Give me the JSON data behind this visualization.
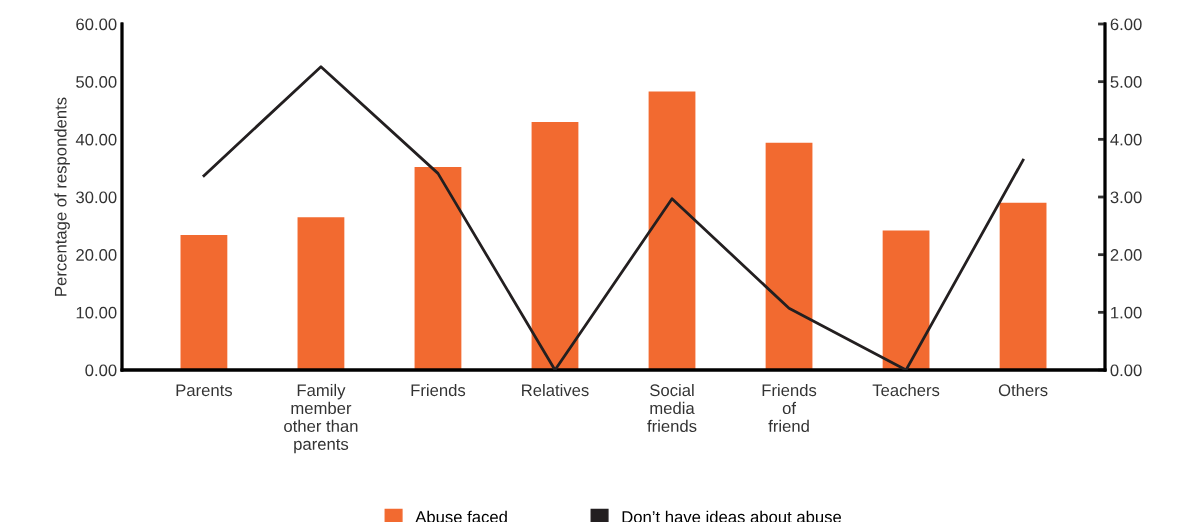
{
  "chart_data": {
    "type": "bar",
    "ylabel": "Percentage of respondents",
    "categories": [
      "Parents",
      "Family\nmember\nother than\nparents",
      "Friends",
      "Relatives",
      "Social\nmedia\nfriends",
      "Friends\nof\nfriend",
      "Teachers",
      "Others"
    ],
    "series": [
      {
        "name": "Abuse faced",
        "color": "#f26a30",
        "values": [
          23.4,
          26.5,
          35.2,
          43.0,
          48.3,
          39.4,
          24.2,
          29.0
        ]
      },
      {
        "name": "Don’t have ideas about abuse",
        "type": "line",
        "axis": "y2",
        "color": "#231f20",
        "values": [
          3.37,
          5.26,
          3.41,
          0,
          2.97,
          1.07,
          0,
          3.64
        ]
      }
    ],
    "ylim": [
      0,
      60
    ],
    "yticks": [
      {
        "value": 0,
        "label": "0.00"
      },
      {
        "value": 10,
        "label": "10.00"
      },
      {
        "value": 20,
        "label": "20.00"
      },
      {
        "value": 30,
        "label": "30.00"
      },
      {
        "value": 40,
        "label": "40.00"
      },
      {
        "value": 50,
        "label": "50.00"
      },
      {
        "value": 60,
        "label": "60.00"
      }
    ],
    "y2lim": [
      0,
      6
    ],
    "y2ticks": [
      {
        "value": 0,
        "label": "0.00"
      },
      {
        "value": 1,
        "label": "1.00"
      },
      {
        "value": 2,
        "label": "2.00"
      },
      {
        "value": 3,
        "label": "3.00"
      },
      {
        "value": 4,
        "label": "4.00"
      },
      {
        "value": 5,
        "label": "5.00"
      },
      {
        "value": 6,
        "label": "6.00"
      }
    ],
    "grid": false,
    "legend": "bottom",
    "marker": "none",
    "line_style": "solid"
  }
}
